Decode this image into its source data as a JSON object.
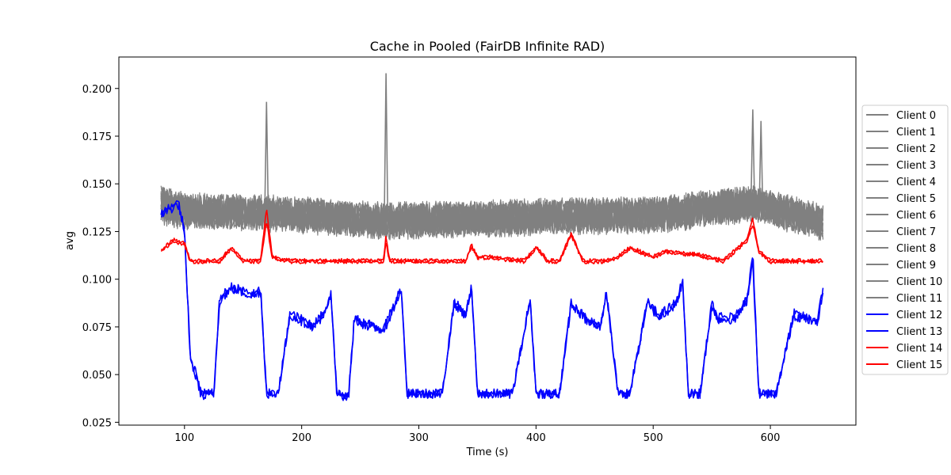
{
  "chart_data": {
    "type": "line",
    "title": "Cache in  Pooled (FairDB Infinite RAD)",
    "xlabel": "Time (s)",
    "ylabel": "avg",
    "xlim": [
      44,
      673
    ],
    "ylim": [
      0.0235,
      0.2165
    ],
    "xticks": [
      100,
      200,
      300,
      400,
      500,
      600
    ],
    "yticks": [
      0.025,
      0.05,
      0.075,
      0.1,
      0.125,
      0.15,
      0.175,
      0.2
    ],
    "ytick_labels": [
      "0.025",
      "0.050",
      "0.075",
      "0.100",
      "0.125",
      "0.150",
      "0.175",
      "0.200"
    ],
    "grid": false,
    "legend_position": "outside right",
    "colors": {
      "gray": "#808080",
      "blue": "#0000ff",
      "red": "#ff0000"
    },
    "series": [
      {
        "name": "Client 0",
        "color": "#808080",
        "group": "gray",
        "base": 0.133,
        "x": [
          80,
          100,
          170,
          272,
          400,
          500,
          585,
          645
        ],
        "y": [
          0.14,
          0.136,
          0.135,
          0.131,
          0.133,
          0.134,
          0.14,
          0.13
        ]
      },
      {
        "name": "Client 1",
        "color": "#808080",
        "group": "gray",
        "base": 0.132,
        "x": [
          80,
          100,
          170,
          272,
          400,
          500,
          585,
          645
        ],
        "y": [
          0.138,
          0.135,
          0.134,
          0.13,
          0.132,
          0.133,
          0.139,
          0.129
        ]
      },
      {
        "name": "Client 2",
        "color": "#808080",
        "group": "gray",
        "base": 0.134,
        "x": [
          80,
          100,
          170,
          272,
          400,
          500,
          585,
          645
        ],
        "y": [
          0.141,
          0.137,
          0.136,
          0.132,
          0.134,
          0.135,
          0.141,
          0.131
        ]
      },
      {
        "name": "Client 3",
        "color": "#808080",
        "group": "gray",
        "base": 0.131,
        "x": [
          80,
          100,
          170,
          272,
          400,
          500,
          585,
          645
        ],
        "y": [
          0.137,
          0.134,
          0.133,
          0.129,
          0.131,
          0.132,
          0.138,
          0.128
        ]
      },
      {
        "name": "Client 4",
        "color": "#808080",
        "group": "gray",
        "base": 0.133,
        "x": [
          80,
          100,
          170,
          272,
          400,
          500,
          585,
          645
        ],
        "y": [
          0.139,
          0.136,
          0.135,
          0.131,
          0.133,
          0.134,
          0.14,
          0.13
        ]
      },
      {
        "name": "Client 5",
        "color": "#808080",
        "group": "gray",
        "base": 0.132,
        "x": [
          80,
          100,
          170,
          272,
          400,
          500,
          585,
          645
        ],
        "y": [
          0.138,
          0.135,
          0.134,
          0.13,
          0.132,
          0.133,
          0.139,
          0.129
        ]
      },
      {
        "name": "Client 6",
        "color": "#808080",
        "group": "gray",
        "base": 0.134,
        "x": [
          80,
          100,
          170,
          272,
          400,
          500,
          585,
          645
        ],
        "y": [
          0.14,
          0.137,
          0.136,
          0.132,
          0.134,
          0.135,
          0.141,
          0.131
        ]
      },
      {
        "name": "Client 7",
        "color": "#808080",
        "group": "gray",
        "base": 0.131,
        "x": [
          80,
          100,
          170,
          272,
          400,
          500,
          585,
          645
        ],
        "y": [
          0.137,
          0.134,
          0.133,
          0.129,
          0.131,
          0.132,
          0.138,
          0.128
        ]
      },
      {
        "name": "Client 8",
        "color": "#808080",
        "group": "gray",
        "base": 0.133,
        "x": [
          80,
          100,
          170,
          272,
          400,
          500,
          585,
          645
        ],
        "y": [
          0.139,
          0.136,
          0.135,
          0.131,
          0.133,
          0.134,
          0.14,
          0.13
        ]
      },
      {
        "name": "Client 9",
        "color": "#808080",
        "group": "gray",
        "base": 0.132,
        "x": [
          80,
          100,
          170,
          272,
          400,
          500,
          585,
          645
        ],
        "y": [
          0.138,
          0.135,
          0.134,
          0.13,
          0.132,
          0.133,
          0.139,
          0.129
        ]
      },
      {
        "name": "Client 10",
        "color": "#808080",
        "group": "gray",
        "base": 0.133,
        "x": [
          80,
          100,
          170,
          272,
          400,
          500,
          585,
          645
        ],
        "y": [
          0.14,
          0.136,
          0.135,
          0.131,
          0.133,
          0.134,
          0.14,
          0.13
        ]
      },
      {
        "name": "Client 11",
        "color": "#808080",
        "group": "gray",
        "base": 0.134,
        "x": [
          80,
          100,
          170,
          272,
          400,
          500,
          585,
          645
        ],
        "y": [
          0.141,
          0.137,
          0.136,
          0.132,
          0.134,
          0.135,
          0.141,
          0.131
        ]
      },
      {
        "name": "Client 12",
        "color": "#0000ff",
        "group": "blue",
        "x": [
          80,
          95,
          100,
          105,
          115,
          125,
          130,
          140,
          160,
          165,
          170,
          180,
          190,
          210,
          220,
          225,
          230,
          240,
          245,
          250,
          270,
          280,
          285,
          290,
          300,
          320,
          330,
          340,
          345,
          350,
          360,
          380,
          395,
          400,
          405,
          420,
          430,
          445,
          455,
          460,
          470,
          480,
          495,
          505,
          520,
          525,
          530,
          540,
          550,
          555,
          570,
          580,
          585,
          590,
          600,
          605,
          620,
          640,
          645
        ],
        "y": [
          0.135,
          0.14,
          0.125,
          0.06,
          0.04,
          0.04,
          0.09,
          0.096,
          0.092,
          0.095,
          0.04,
          0.04,
          0.082,
          0.076,
          0.083,
          0.093,
          0.04,
          0.039,
          0.08,
          0.078,
          0.074,
          0.088,
          0.096,
          0.04,
          0.04,
          0.04,
          0.088,
          0.082,
          0.096,
          0.04,
          0.04,
          0.04,
          0.09,
          0.04,
          0.04,
          0.04,
          0.088,
          0.078,
          0.076,
          0.094,
          0.04,
          0.04,
          0.088,
          0.081,
          0.088,
          0.1,
          0.04,
          0.04,
          0.087,
          0.08,
          0.08,
          0.09,
          0.115,
          0.04,
          0.04,
          0.04,
          0.082,
          0.078,
          0.095
        ]
      },
      {
        "name": "Client 13",
        "color": "#0000ff",
        "group": "blue",
        "x": [
          80,
          95,
          100,
          105,
          115,
          125,
          130,
          140,
          160,
          165,
          170,
          180,
          190,
          210,
          220,
          225,
          230,
          240,
          245,
          250,
          270,
          280,
          285,
          290,
          300,
          320,
          330,
          340,
          345,
          350,
          360,
          380,
          395,
          400,
          405,
          420,
          430,
          445,
          455,
          460,
          470,
          480,
          495,
          505,
          520,
          525,
          530,
          540,
          550,
          555,
          570,
          580,
          585,
          590,
          600,
          605,
          620,
          640,
          645
        ],
        "y": [
          0.134,
          0.139,
          0.124,
          0.058,
          0.038,
          0.04,
          0.089,
          0.095,
          0.091,
          0.094,
          0.04,
          0.04,
          0.081,
          0.075,
          0.082,
          0.092,
          0.04,
          0.038,
          0.079,
          0.077,
          0.073,
          0.087,
          0.095,
          0.04,
          0.04,
          0.04,
          0.087,
          0.081,
          0.095,
          0.04,
          0.04,
          0.04,
          0.089,
          0.04,
          0.04,
          0.04,
          0.087,
          0.077,
          0.075,
          0.093,
          0.04,
          0.04,
          0.087,
          0.08,
          0.087,
          0.099,
          0.04,
          0.04,
          0.086,
          0.079,
          0.079,
          0.089,
          0.11,
          0.04,
          0.04,
          0.04,
          0.081,
          0.077,
          0.094
        ]
      },
      {
        "name": "Client 14",
        "color": "#ff0000",
        "group": "red",
        "x": [
          80,
          90,
          100,
          105,
          130,
          140,
          150,
          165,
          170,
          175,
          190,
          200,
          260,
          270,
          272,
          275,
          340,
          345,
          350,
          360,
          390,
          400,
          410,
          420,
          430,
          440,
          460,
          470,
          480,
          500,
          510,
          540,
          560,
          580,
          585,
          590,
          600,
          620,
          645
        ],
        "y": [
          0.115,
          0.121,
          0.119,
          0.11,
          0.11,
          0.117,
          0.11,
          0.11,
          0.137,
          0.112,
          0.11,
          0.11,
          0.11,
          0.11,
          0.123,
          0.11,
          0.11,
          0.118,
          0.112,
          0.112,
          0.11,
          0.117,
          0.11,
          0.11,
          0.124,
          0.11,
          0.11,
          0.112,
          0.117,
          0.112,
          0.115,
          0.113,
          0.11,
          0.121,
          0.132,
          0.115,
          0.11,
          0.11,
          0.11
        ]
      },
      {
        "name": "Client 15",
        "color": "#ff0000",
        "group": "red",
        "x": [
          80,
          90,
          100,
          105,
          130,
          140,
          150,
          165,
          170,
          175,
          190,
          200,
          260,
          270,
          272,
          275,
          340,
          345,
          350,
          360,
          390,
          400,
          410,
          420,
          430,
          440,
          460,
          470,
          480,
          500,
          510,
          540,
          560,
          580,
          585,
          590,
          600,
          620,
          645
        ],
        "y": [
          0.114,
          0.12,
          0.118,
          0.109,
          0.109,
          0.116,
          0.109,
          0.109,
          0.13,
          0.111,
          0.109,
          0.109,
          0.109,
          0.109,
          0.12,
          0.109,
          0.109,
          0.117,
          0.111,
          0.111,
          0.109,
          0.116,
          0.109,
          0.109,
          0.123,
          0.109,
          0.109,
          0.111,
          0.116,
          0.111,
          0.114,
          0.112,
          0.109,
          0.12,
          0.129,
          0.114,
          0.109,
          0.109,
          0.109
        ]
      }
    ],
    "annotations_peaks": [
      {
        "series": "Client 0",
        "x": 170,
        "y": 0.193
      },
      {
        "series": "Client 1",
        "x": 272,
        "y": 0.208
      },
      {
        "series": "Client 2",
        "x": 585,
        "y": 0.189
      },
      {
        "series": "Client 3",
        "x": 592,
        "y": 0.183
      }
    ]
  }
}
